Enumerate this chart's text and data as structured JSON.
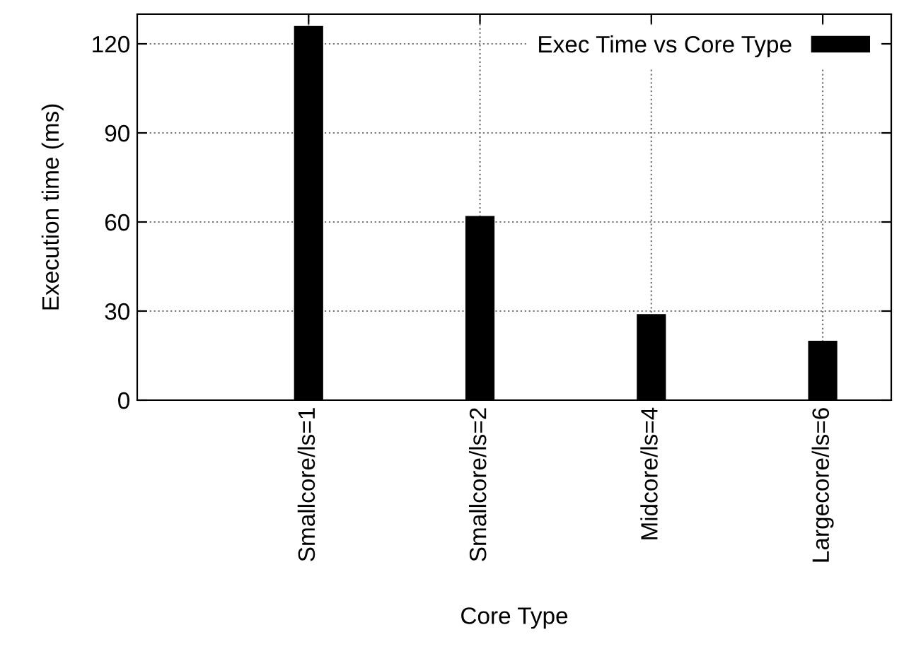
{
  "chart_data": {
    "type": "bar",
    "xlabel": "Core Type",
    "ylabel": "Execution time (ms)",
    "categories": [
      "Smallcore/ls=1",
      "Smallcore/ls=2",
      "Midcore/ls=4",
      "Largecore/ls=6"
    ],
    "series": [
      {
        "name": "Exec Time vs Core Type",
        "color": "#000000",
        "values": [
          126,
          62,
          29,
          20
        ]
      }
    ],
    "ylim": [
      0,
      130
    ],
    "yticks": [
      0,
      30,
      60,
      90,
      120
    ],
    "grid": true,
    "legend": "top right"
  }
}
